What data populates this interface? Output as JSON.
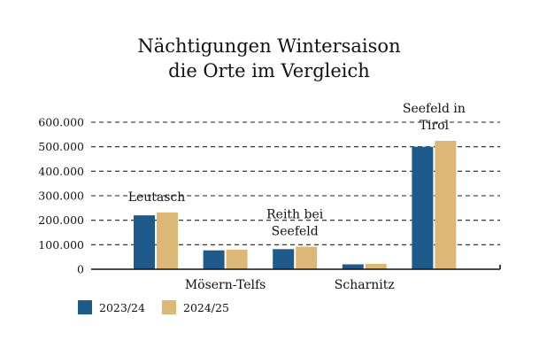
{
  "chart_data": {
    "type": "bar",
    "title": [
      "Nächtigungen Wintersaison",
      "die Orte im Vergleich"
    ],
    "xlabel": "",
    "ylabel": "",
    "categories": [
      [
        "Leutasch"
      ],
      [
        "Mösern-Telfs"
      ],
      [
        "Reith bei",
        "Seefeld"
      ],
      [
        "Scharnitz"
      ],
      [
        "Seefeld in",
        "Tirol"
      ]
    ],
    "series": [
      {
        "name": "2023/24",
        "color": "#1f5a8c",
        "values": [
          220000,
          77000,
          82000,
          20000,
          500000
        ]
      },
      {
        "name": "2024/25",
        "color": "#dcb775",
        "values": [
          232000,
          80000,
          92000,
          22000,
          524000
        ]
      }
    ],
    "ylim": [
      0,
      600000
    ],
    "yticks": [
      0,
      100000,
      200000,
      300000,
      400000,
      500000,
      600000
    ],
    "ytick_labels": [
      "0",
      "100.000",
      "200.000",
      "300.000",
      "400.000",
      "500.000",
      "600.000"
    ],
    "grid": "horizontal-dashed",
    "legend": "bottom-left"
  }
}
